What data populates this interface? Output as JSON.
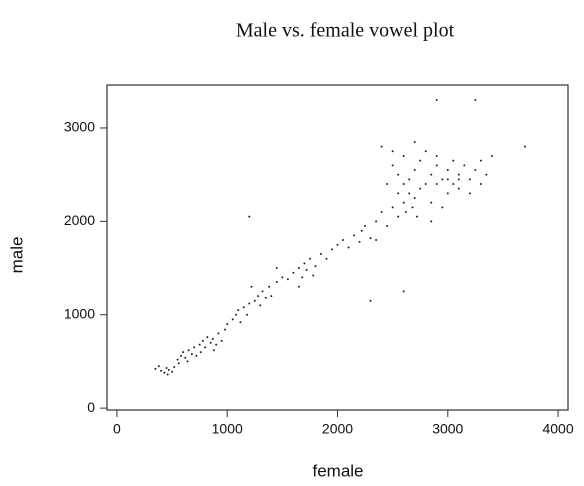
{
  "chart_data": {
    "type": "scatter",
    "title": "Male vs. female vowel plot",
    "xlabel": "female",
    "ylabel": "male",
    "color": "#222222",
    "xlim": [
      -90,
      4090
    ],
    "ylim": [
      -20,
      3460
    ],
    "xticks": [
      0,
      1000,
      2000,
      3000,
      4000
    ],
    "yticks": [
      0,
      1000,
      2000,
      3000
    ],
    "x": [
      400,
      430,
      450,
      470,
      500,
      380,
      520,
      460,
      550,
      580,
      600,
      620,
      650,
      680,
      700,
      560,
      640,
      720,
      750,
      780,
      800,
      820,
      850,
      870,
      900,
      920,
      950,
      880,
      760,
      980,
      1000,
      1050,
      1080,
      1100,
      1120,
      1150,
      1180,
      1200,
      1250,
      1280,
      1300,
      1320,
      1350,
      1380,
      1220,
      1400,
      1450,
      1500,
      1550,
      1600,
      1650,
      1680,
      1700,
      1720,
      1750,
      1780,
      1800,
      1850,
      1900,
      1950,
      2000,
      2050,
      2100,
      2150,
      2200,
      2220,
      2250,
      2300,
      2350,
      2400,
      2450,
      2500,
      2550,
      2600,
      2620,
      2650,
      2680,
      2700,
      2720,
      2750,
      2450,
      2500,
      2550,
      2600,
      2650,
      2700,
      2750,
      2800,
      2850,
      2900,
      2950,
      3000,
      3050,
      3100,
      3150,
      3200,
      3250,
      3300,
      2800,
      2900,
      3000,
      3100,
      2400,
      2500,
      2850,
      2950,
      3050,
      3350,
      3400,
      3200,
      2700,
      2600,
      2900,
      3000,
      3100,
      2550,
      1200,
      2300,
      2900,
      3250,
      3700,
      2600,
      350,
      1450,
      1650,
      2350,
      2850,
      3300
    ],
    "y": [
      400,
      380,
      430,
      410,
      390,
      450,
      440,
      360,
      520,
      560,
      600,
      540,
      620,
      580,
      650,
      480,
      500,
      560,
      680,
      720,
      650,
      760,
      700,
      740,
      680,
      800,
      720,
      620,
      600,
      840,
      900,
      950,
      1000,
      1050,
      920,
      1080,
      1000,
      1120,
      1150,
      1200,
      1100,
      1250,
      1180,
      1300,
      1300,
      1200,
      1350,
      1400,
      1380,
      1450,
      1500,
      1400,
      1550,
      1480,
      1600,
      1420,
      1520,
      1650,
      1600,
      1700,
      1750,
      1800,
      1720,
      1850,
      1780,
      1900,
      1950,
      1820,
      2000,
      2100,
      1950,
      2150,
      2050,
      2200,
      2100,
      2300,
      2150,
      2250,
      2050,
      2350,
      2400,
      2600,
      2500,
      2700,
      2450,
      2550,
      2650,
      2400,
      2500,
      2600,
      2450,
      2550,
      2400,
      2500,
      2600,
      2450,
      2550,
      2650,
      2750,
      2700,
      2300,
      2350,
      2800,
      2750,
      2200,
      2150,
      2650,
      2500,
      2700,
      2300,
      2850,
      2400,
      2400,
      2450,
      2450,
      2300,
      2050,
      1150,
      3300,
      3300,
      2800,
      1250,
      420,
      1500,
      1300,
      1800,
      2000,
      2400
    ]
  }
}
